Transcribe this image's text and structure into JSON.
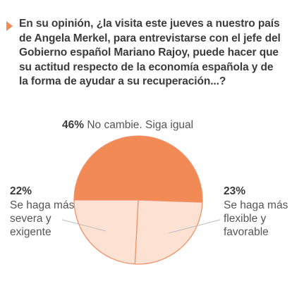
{
  "question": "En su opinión, ¿la visita este jueves a nuestro país de Angela Merkel, para entrevistarse con el jefe del Gobierno español Mariano Rajoy,  puede hacer que su actitud respecto de la economía española y de la forma de ayudar a su recuperación...?",
  "colors": {
    "accent": "#f28a55",
    "light": "#fde1d2",
    "stroke": "#f0926a",
    "leader": "#bdbdbd"
  },
  "chart_data": {
    "type": "pie",
    "title": "",
    "slices": [
      {
        "label": "No cambie. Siga igual",
        "value": 46,
        "pct_text": "46%",
        "color": "#f28a55"
      },
      {
        "label": "Se haga más flexible y favorable",
        "value": 23,
        "pct_text": "23%",
        "color": "#fde1d2"
      },
      {
        "label": "Se haga más severa y exigente",
        "value": 22,
        "pct_text": "22%",
        "color": "#fde1d2"
      }
    ]
  }
}
